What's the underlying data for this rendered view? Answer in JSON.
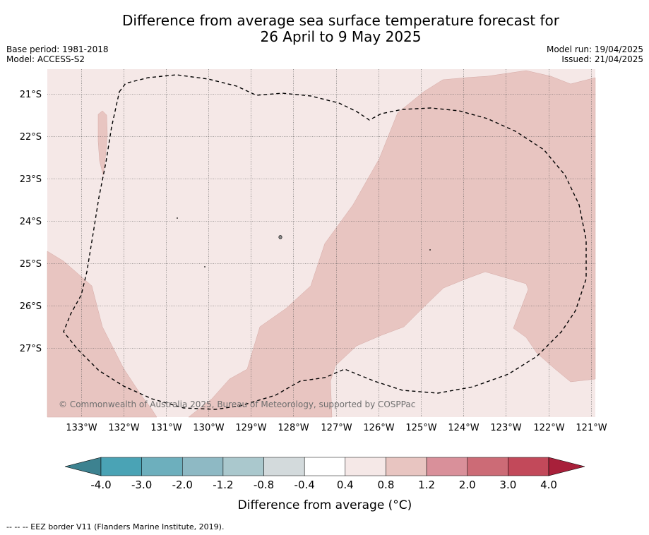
{
  "title_line1": "Difference from average sea surface temperature forecast for",
  "title_line2": "26 April to 9 May 2025",
  "base_period": "Base period: 1981-2018",
  "model": "Model: ACCESS-S2",
  "model_run": "Model run: 19/04/2025",
  "issued": "Issued: 21/04/2025",
  "credit": "© Commonwealth of Australia 2025, Bureau of Meteorology, supported by COSPPac",
  "footnote": "--  --  -- EEZ border V11 (Flanders Marine Institute, 2019).",
  "lat_labels": [
    "21°S",
    "22°S",
    "23°S",
    "24°S",
    "25°S",
    "26°S",
    "27°S"
  ],
  "lon_labels": [
    "133°W",
    "132°W",
    "131°W",
    "130°W",
    "129°W",
    "128°W",
    "127°W",
    "126°W",
    "125°W",
    "124°W",
    "123°W",
    "122°W",
    "121°W"
  ],
  "colorbar": {
    "title": "Difference from average (°C)",
    "tick_labels": [
      "-4.0",
      "-3.0",
      "-2.0",
      "-1.2",
      "-0.8",
      "-0.4",
      "0.4",
      "0.8",
      "1.2",
      "2.0",
      "3.0",
      "4.0"
    ],
    "colors": [
      "#4aa3b5",
      "#6dafbd",
      "#8eb9c4",
      "#aac8cd",
      "#d3dadc",
      "#ffffff",
      "#f5e8e7",
      "#e8c5c1",
      "#d9909a",
      "#cc6b76",
      "#c2495a"
    ],
    "under_color": "#3d8290",
    "over_color": "#a8203a"
  },
  "map_colors": {
    "anomaly_04_08": "#f5e8e7",
    "anomaly_08_12": "#e8c5c1"
  }
}
